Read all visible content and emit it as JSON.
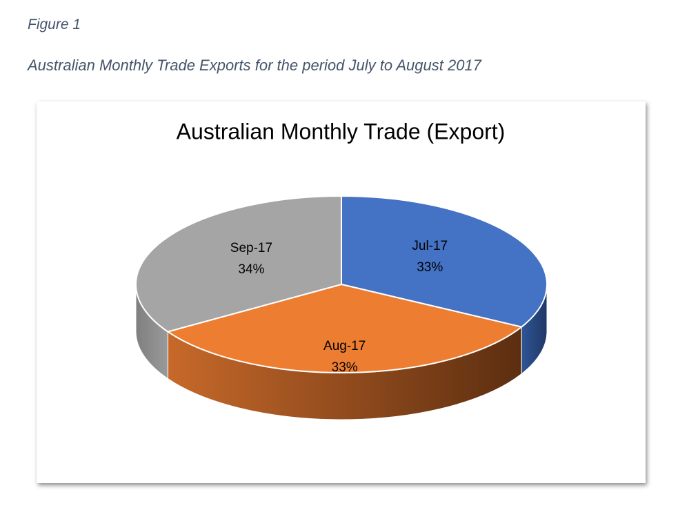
{
  "document": {
    "caption": "Figure 1",
    "heading": "Australian Monthly Trade Exports for the period July to August 2017"
  },
  "chart_data": {
    "type": "pie",
    "title": "Australian Monthly Trade (Export)",
    "categories": [
      "Jul-17",
      "Aug-17",
      "Sep-17"
    ],
    "values": [
      33,
      33,
      34
    ],
    "value_labels": [
      "33%",
      "33%",
      "34%"
    ],
    "colors": [
      "#4472c4",
      "#ed7d31",
      "#a5a5a5"
    ]
  }
}
